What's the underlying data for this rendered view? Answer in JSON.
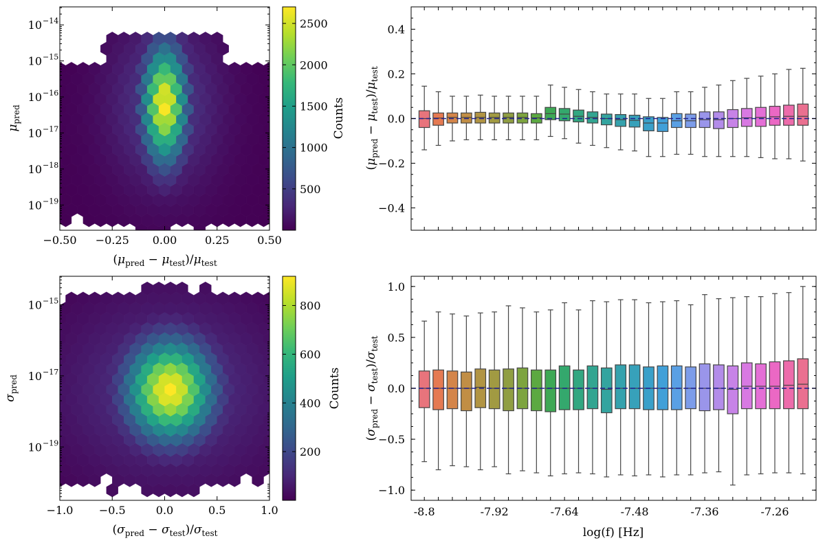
{
  "chart_data": [
    {
      "id": "mu_hexbin",
      "type": "hexbin",
      "xlabel": "(μ_pred − μ_test)/μ_test",
      "ylabel": "μ_pred",
      "xlim": [
        -0.5,
        0.5
      ],
      "ylim_log10": [
        -19.7,
        -13.5
      ],
      "xticks": [
        -0.5,
        -0.25,
        0.0,
        0.25,
        0.5
      ],
      "xtick_labels": [
        "−0.50",
        "−0.25",
        "0.00",
        "0.25",
        "0.50"
      ],
      "yticks_log10": [
        -19,
        -18,
        -17,
        -16,
        -15,
        -14
      ],
      "ytick_labels": [
        "10",
        "10",
        "10",
        "10",
        "10",
        "10"
      ],
      "ytick_exponents": [
        "−19",
        "−18",
        "−17",
        "−16",
        "−15",
        "−14"
      ],
      "colorbar": {
        "label": "Counts",
        "min": 0,
        "max": 2700,
        "ticks": [
          500,
          1000,
          1500,
          2000,
          2500
        ],
        "tick_labels": [
          "500",
          "1000",
          "1500",
          "2000",
          "2500"
        ]
      },
      "density": {
        "peak_x": 0.0,
        "peak_log10_y": -16.2,
        "peak_count": 2700,
        "sigma_x": 0.07,
        "sigma_log10_y": 1.1
      }
    },
    {
      "id": "mu_box",
      "type": "box",
      "ylabel": "(μ_pred − μ_test)/μ_test",
      "ylim": [
        -0.5,
        0.5
      ],
      "yticks": [
        -0.4,
        -0.2,
        0.0,
        0.2,
        0.4
      ],
      "ytick_labels": [
        "−0.4",
        "−0.2",
        "0.0",
        "0.2",
        "0.4"
      ],
      "reference_line": 0.0,
      "boxes": [
        {
          "q1": -0.04,
          "median": 0.0,
          "q3": 0.035,
          "whislo": -0.14,
          "whishi": 0.145
        },
        {
          "q1": -0.03,
          "median": 0.002,
          "q3": 0.025,
          "whislo": -0.12,
          "whishi": 0.12
        },
        {
          "q1": -0.02,
          "median": 0.005,
          "q3": 0.025,
          "whislo": -0.1,
          "whishi": 0.1
        },
        {
          "q1": -0.02,
          "median": 0.005,
          "q3": 0.025,
          "whislo": -0.095,
          "whishi": 0.1
        },
        {
          "q1": -0.02,
          "median": 0.005,
          "q3": 0.028,
          "whislo": -0.095,
          "whishi": 0.105
        },
        {
          "q1": -0.02,
          "median": 0.005,
          "q3": 0.025,
          "whislo": -0.095,
          "whishi": 0.1
        },
        {
          "q1": -0.02,
          "median": 0.005,
          "q3": 0.025,
          "whislo": -0.095,
          "whishi": 0.1
        },
        {
          "q1": -0.02,
          "median": 0.005,
          "q3": 0.025,
          "whislo": -0.095,
          "whishi": 0.1
        },
        {
          "q1": -0.02,
          "median": 0.003,
          "q3": 0.022,
          "whislo": -0.095,
          "whishi": 0.1
        },
        {
          "q1": -0.005,
          "median": 0.022,
          "q3": 0.05,
          "whislo": -0.08,
          "whishi": 0.15
        },
        {
          "q1": -0.01,
          "median": 0.02,
          "q3": 0.045,
          "whislo": -0.09,
          "whishi": 0.14
        },
        {
          "q1": -0.015,
          "median": 0.01,
          "q3": 0.038,
          "whislo": -0.11,
          "whishi": 0.13
        },
        {
          "q1": -0.02,
          "median": 0.005,
          "q3": 0.03,
          "whislo": -0.12,
          "whishi": 0.12
        },
        {
          "q1": -0.028,
          "median": 0.0,
          "q3": 0.02,
          "whislo": -0.13,
          "whishi": 0.11
        },
        {
          "q1": -0.035,
          "median": -0.005,
          "q3": 0.018,
          "whislo": -0.14,
          "whishi": 0.11
        },
        {
          "q1": -0.038,
          "median": -0.008,
          "q3": 0.015,
          "whislo": -0.145,
          "whishi": 0.11
        },
        {
          "q1": -0.055,
          "median": -0.02,
          "q3": 0.008,
          "whislo": -0.17,
          "whishi": 0.09
        },
        {
          "q1": -0.058,
          "median": -0.02,
          "q3": 0.005,
          "whislo": -0.17,
          "whishi": 0.09
        },
        {
          "q1": -0.04,
          "median": -0.01,
          "q3": 0.022,
          "whislo": -0.16,
          "whishi": 0.12
        },
        {
          "q1": -0.04,
          "median": -0.01,
          "q3": 0.02,
          "whislo": -0.16,
          "whishi": 0.12
        },
        {
          "q1": -0.04,
          "median": -0.005,
          "q3": 0.03,
          "whislo": -0.17,
          "whishi": 0.14
        },
        {
          "q1": -0.045,
          "median": -0.005,
          "q3": 0.03,
          "whislo": -0.17,
          "whishi": 0.15
        },
        {
          "q1": -0.04,
          "median": 0.0,
          "q3": 0.04,
          "whislo": -0.17,
          "whishi": 0.17
        },
        {
          "q1": -0.035,
          "median": 0.003,
          "q3": 0.045,
          "whislo": -0.17,
          "whishi": 0.18
        },
        {
          "q1": -0.035,
          "median": 0.005,
          "q3": 0.05,
          "whislo": -0.175,
          "whishi": 0.19
        },
        {
          "q1": -0.03,
          "median": 0.008,
          "q3": 0.055,
          "whislo": -0.18,
          "whishi": 0.2
        },
        {
          "q1": -0.03,
          "median": 0.01,
          "q3": 0.06,
          "whislo": -0.18,
          "whishi": 0.22
        },
        {
          "q1": -0.03,
          "median": 0.01,
          "q3": 0.065,
          "whislo": -0.19,
          "whishi": 0.225
        }
      ]
    },
    {
      "id": "sigma_hexbin",
      "type": "hexbin",
      "xlabel": "(σ_pred − σ_test)/σ_test",
      "ylabel": "σ_pred",
      "xlim": [
        -1.0,
        1.0
      ],
      "ylim_log10": [
        -20.5,
        -14.2
      ],
      "xticks": [
        -1.0,
        -0.5,
        0.0,
        0.5,
        1.0
      ],
      "xtick_labels": [
        "−1.0",
        "−0.5",
        "0.0",
        "0.5",
        "1.0"
      ],
      "yticks_log10": [
        -19,
        -17,
        -15
      ],
      "ytick_labels": [
        "10",
        "10",
        "10"
      ],
      "ytick_exponents": [
        "−19",
        "−17",
        "−15"
      ],
      "colorbar": {
        "label": "Counts",
        "min": 0,
        "max": 920,
        "ticks": [
          200,
          400,
          600,
          800
        ],
        "tick_labels": [
          "200",
          "400",
          "600",
          "800"
        ]
      },
      "density": {
        "peak_x": 0.05,
        "peak_log10_y": -17.4,
        "peak_count": 920,
        "sigma_x": 0.28,
        "sigma_log10_y": 0.95
      }
    },
    {
      "id": "sigma_box",
      "type": "box",
      "xlabel": "log(f) [Hz]",
      "ylabel": "(σ_pred − σ_test)/σ_test",
      "ylim": [
        -1.1,
        1.1
      ],
      "yticks": [
        -1.0,
        -0.5,
        0.0,
        0.5,
        1.0
      ],
      "ytick_labels": [
        "−1.0",
        "−0.5",
        "0.0",
        "0.5",
        "1.0"
      ],
      "xtick_labels": [
        "-8.8",
        "-7.92",
        "-7.64",
        "-7.48",
        "-7.36",
        "-7.26"
      ],
      "xtick_indices": [
        0,
        5,
        10,
        15,
        20,
        25
      ],
      "reference_line": 0.0,
      "boxes": [
        {
          "q1": -0.19,
          "median": 0.0,
          "q3": 0.17,
          "whislo": -0.72,
          "whishi": 0.66
        },
        {
          "q1": -0.21,
          "median": 0.0,
          "q3": 0.18,
          "whislo": -0.8,
          "whishi": 0.75
        },
        {
          "q1": -0.2,
          "median": 0.0,
          "q3": 0.17,
          "whislo": -0.76,
          "whishi": 0.73
        },
        {
          "q1": -0.22,
          "median": 0.0,
          "q3": 0.16,
          "whislo": -0.77,
          "whishi": 0.71
        },
        {
          "q1": -0.19,
          "median": 0.01,
          "q3": 0.19,
          "whislo": -0.8,
          "whishi": 0.74
        },
        {
          "q1": -0.2,
          "median": 0.0,
          "q3": 0.18,
          "whislo": -0.77,
          "whishi": 0.75
        },
        {
          "q1": -0.22,
          "median": 0.0,
          "q3": 0.19,
          "whislo": -0.84,
          "whishi": 0.81
        },
        {
          "q1": -0.2,
          "median": 0.0,
          "q3": 0.2,
          "whislo": -0.81,
          "whishi": 0.79
        },
        {
          "q1": -0.22,
          "median": 0.0,
          "q3": 0.18,
          "whislo": -0.83,
          "whishi": 0.75
        },
        {
          "q1": -0.23,
          "median": 0.0,
          "q3": 0.18,
          "whislo": -0.86,
          "whishi": 0.77
        },
        {
          "q1": -0.21,
          "median": 0.0,
          "q3": 0.22,
          "whislo": -0.84,
          "whishi": 0.84
        },
        {
          "q1": -0.21,
          "median": 0.0,
          "q3": 0.18,
          "whislo": -0.83,
          "whishi": 0.77
        },
        {
          "q1": -0.2,
          "median": 0.0,
          "q3": 0.22,
          "whislo": -0.84,
          "whishi": 0.86
        },
        {
          "q1": -0.24,
          "median": -0.01,
          "q3": 0.2,
          "whislo": -0.87,
          "whishi": 0.85
        },
        {
          "q1": -0.2,
          "median": 0.0,
          "q3": 0.23,
          "whislo": -0.85,
          "whishi": 0.87
        },
        {
          "q1": -0.2,
          "median": 0.0,
          "q3": 0.23,
          "whislo": -0.86,
          "whishi": 0.87
        },
        {
          "q1": -0.21,
          "median": 0.0,
          "q3": 0.21,
          "whislo": -0.85,
          "whishi": 0.84
        },
        {
          "q1": -0.21,
          "median": 0.0,
          "q3": 0.22,
          "whislo": -0.87,
          "whishi": 0.85
        },
        {
          "q1": -0.21,
          "median": 0.0,
          "q3": 0.22,
          "whislo": -0.85,
          "whishi": 0.86
        },
        {
          "q1": -0.2,
          "median": 0.0,
          "q3": 0.21,
          "whislo": -0.85,
          "whishi": 0.82
        },
        {
          "q1": -0.22,
          "median": 0.0,
          "q3": 0.24,
          "whislo": -0.83,
          "whishi": 0.92
        },
        {
          "q1": -0.21,
          "median": 0.0,
          "q3": 0.23,
          "whislo": -0.82,
          "whishi": 0.88
        },
        {
          "q1": -0.25,
          "median": -0.01,
          "q3": 0.22,
          "whislo": -0.95,
          "whishi": 0.89
        },
        {
          "q1": -0.2,
          "median": 0.02,
          "q3": 0.25,
          "whislo": -0.85,
          "whishi": 0.9
        },
        {
          "q1": -0.2,
          "median": 0.02,
          "q3": 0.24,
          "whislo": -0.84,
          "whishi": 0.9
        },
        {
          "q1": -0.2,
          "median": 0.02,
          "q3": 0.26,
          "whislo": -0.83,
          "whishi": 0.93
        },
        {
          "q1": -0.2,
          "median": 0.03,
          "q3": 0.27,
          "whislo": -0.83,
          "whishi": 0.94
        },
        {
          "q1": -0.2,
          "median": 0.04,
          "q3": 0.29,
          "whislo": -0.84,
          "whishi": 1.0
        }
      ]
    }
  ],
  "colors": {
    "box_palette": [
      "#e8747c",
      "#e57a52",
      "#d4854a",
      "#c18e45",
      "#b19443",
      "#a19a42",
      "#909e42",
      "#7da43f",
      "#5ca941",
      "#3ea855",
      "#34a86d",
      "#32a781",
      "#33a591",
      "#34a49f",
      "#35a2ad",
      "#37a1ba",
      "#3aa0c9",
      "#41a0d8",
      "#5aa0e4",
      "#7c9ce9",
      "#9a95ea",
      "#b38ce9",
      "#c783e7",
      "#d879e2",
      "#e46fd6",
      "#eb68c4",
      "#ed6cab",
      "#ea7090"
    ],
    "box_edge": "#444444",
    "reference_line": "#1f1f8f",
    "viridis": [
      "#440154",
      "#482878",
      "#3e4989",
      "#31688e",
      "#26828e",
      "#1f9e89",
      "#35b779",
      "#6ece58",
      "#b5de2b",
      "#fde725"
    ]
  }
}
